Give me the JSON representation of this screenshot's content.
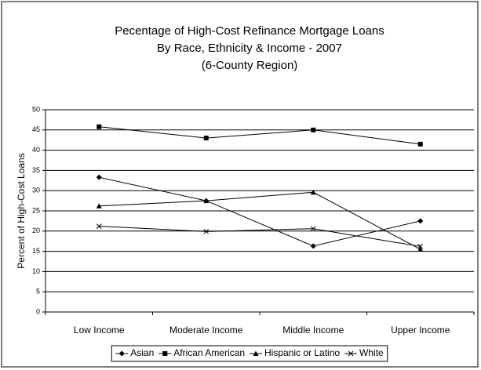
{
  "chart_data": {
    "type": "line",
    "title": [
      "Pecentage of High-Cost Refinance Mortgage Loans",
      "By Race, Ethnicity & Income - 2007",
      "(6-County Region)"
    ],
    "y_label": "Percent of High-Cost Loans",
    "categories": [
      "Low Income",
      "Moderate Income",
      "Middle Income",
      "Upper Income"
    ],
    "series": [
      {
        "name": "Asian",
        "color": "#000000",
        "marker": "diamond",
        "values": [
          33.3,
          27.5,
          16.3,
          22.5
        ]
      },
      {
        "name": "African American",
        "color": "#000000",
        "marker": "square",
        "values": [
          45.8,
          43.0,
          45.0,
          41.5
        ]
      },
      {
        "name": "Hispanic or Latino",
        "color": "#000000",
        "marker": "triangle",
        "values": [
          26.2,
          27.5,
          29.6,
          15.5
        ]
      },
      {
        "name": "White",
        "color": "#000000",
        "marker": "x",
        "values": [
          21.2,
          19.9,
          20.6,
          16.2
        ]
      }
    ],
    "ylim": [
      0,
      50
    ],
    "yticks": [
      0,
      5,
      10,
      15,
      20,
      25,
      30,
      35,
      40,
      45,
      50
    ],
    "grid": true,
    "legend": "bottom"
  }
}
